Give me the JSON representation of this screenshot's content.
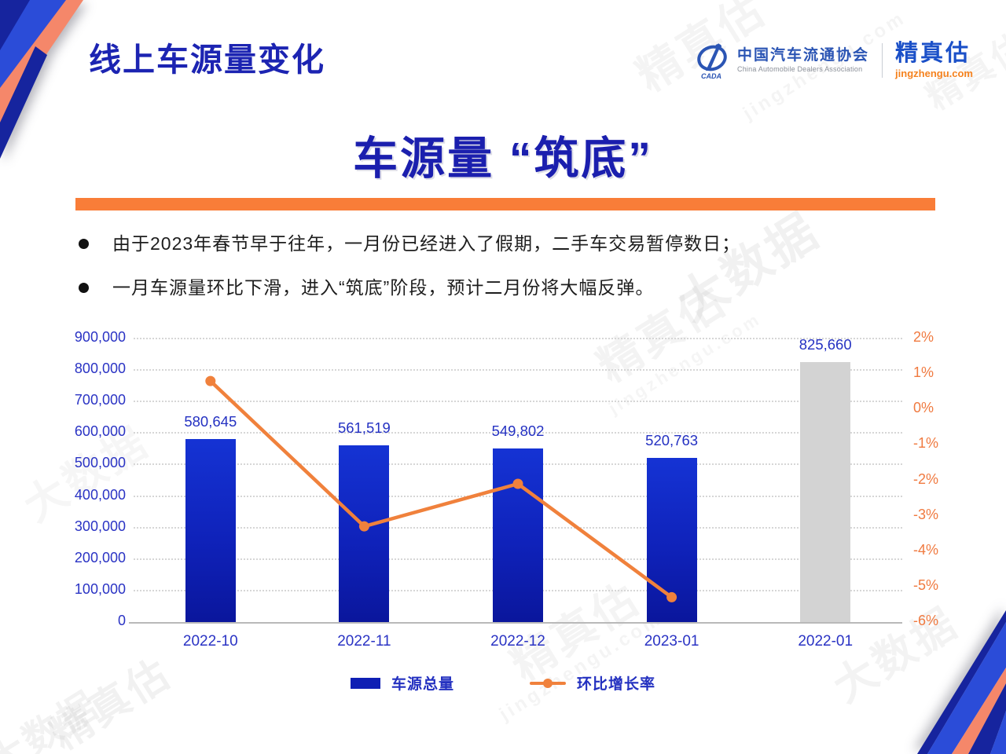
{
  "header": {
    "title": "线上车源量变化",
    "org_cn": "中国汽车流通协会",
    "org_en": "China Automobile Dealers Association",
    "org_abbr": "CADA",
    "brand_name": "精真估",
    "brand_url": "jingzhengu.com"
  },
  "headline": "车源量 “筑底”",
  "bullets": [
    "由于2023年春节早于往年，一月份已经进入了假期，二手车交易暂停数日；",
    "一月车源量环比下滑，进入“筑底”阶段，预计二月份将大幅反弹。"
  ],
  "chart_data": {
    "type": "bar",
    "title": "",
    "categories": [
      "2022-10",
      "2022-11",
      "2022-12",
      "2023-01",
      "2022-01"
    ],
    "series": [
      {
        "name": "车源总量",
        "type": "bar",
        "values": [
          580645,
          561519,
          549802,
          520763,
          825660
        ],
        "labels": [
          "580,645",
          "561,519",
          "549,802",
          "520,763",
          "825,660"
        ],
        "bar_styles": [
          "blue",
          "blue",
          "blue",
          "blue",
          "gray"
        ],
        "axis": "left"
      },
      {
        "name": "环比增长率",
        "type": "line",
        "values": [
          0.8,
          -3.3,
          -2.1,
          -5.3
        ],
        "axis": "right",
        "color": "#f0813c"
      }
    ],
    "left_axis": {
      "min": 0,
      "max": 900000,
      "step": 100000,
      "labels": [
        "900,000",
        "800,000",
        "700,000",
        "600,000",
        "500,000",
        "400,000",
        "300,000",
        "200,000",
        "100,000",
        "0"
      ]
    },
    "right_axis": {
      "min": -6,
      "max": 2,
      "step": 1,
      "labels": [
        "2%",
        "1%",
        "0%",
        "-1%",
        "-2%",
        "-3%",
        "-4%",
        "-5%",
        "-6%"
      ]
    },
    "grid": "dotted horizontal",
    "legend_position": "bottom"
  },
  "colors": {
    "headline_blue": "#1b1fae",
    "axis_blue": "#2a33c4",
    "bar_blue": "#0f22ba",
    "bar_gray": "#d3d3d3",
    "line_orange": "#f0813c",
    "divider_orange": "#f97d38",
    "corner_navy": "#16249e",
    "corner_blue": "#2b4cd8",
    "corner_salmon": "#f5876a"
  },
  "watermarks": {
    "texts": [
      "精真估",
      "大数据",
      "jingzhengu.com"
    ]
  }
}
